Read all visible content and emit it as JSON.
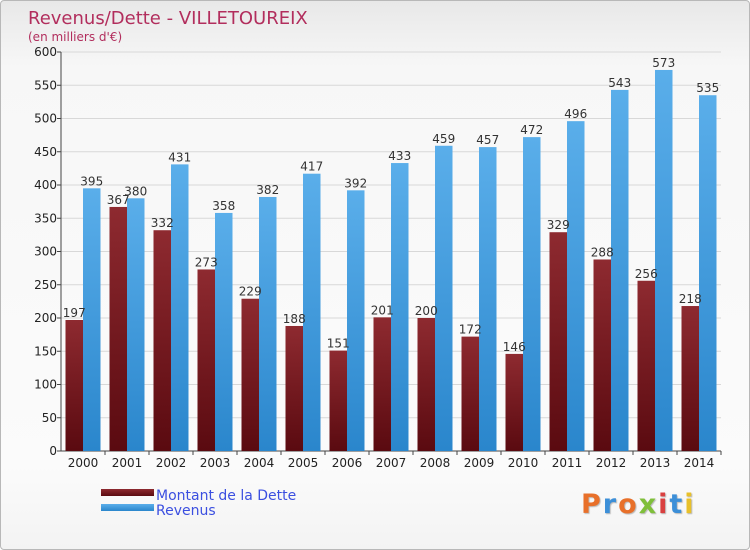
{
  "chart_data": {
    "type": "bar",
    "title": "Revenus/Dette - VILLETOUREIX",
    "subtitle": "(en milliers d'€)",
    "categories": [
      "2000",
      "2001",
      "2002",
      "2003",
      "2004",
      "2005",
      "2006",
      "2007",
      "2008",
      "2009",
      "2010",
      "2011",
      "2012",
      "2013",
      "2014"
    ],
    "series": [
      {
        "name": "Montant de la Dette",
        "color": "#7a1f24",
        "values": [
          197,
          367,
          332,
          273,
          229,
          188,
          151,
          201,
          200,
          172,
          146,
          329,
          288,
          256,
          218
        ]
      },
      {
        "name": "Revenus",
        "color": "#3d9be0",
        "values": [
          395,
          380,
          431,
          358,
          382,
          417,
          392,
          433,
          459,
          457,
          472,
          496,
          543,
          573,
          535
        ]
      }
    ],
    "ylim": [
      0,
      600
    ],
    "yticks": [
      0,
      50,
      100,
      150,
      200,
      250,
      300,
      350,
      400,
      450,
      500,
      550,
      600
    ],
    "grid": true,
    "legend": "bottom-left"
  },
  "logo": {
    "letters": [
      {
        "char": "P",
        "color": "#e8702a"
      },
      {
        "char": "r",
        "color": "#3c8fd8"
      },
      {
        "char": "o",
        "color": "#e8702a"
      },
      {
        "char": "x",
        "color": "#7fbf3a"
      },
      {
        "char": "i",
        "color": "#d94040"
      },
      {
        "char": "t",
        "color": "#3c8fd8"
      },
      {
        "char": "i",
        "color": "#e8c02a"
      }
    ]
  }
}
